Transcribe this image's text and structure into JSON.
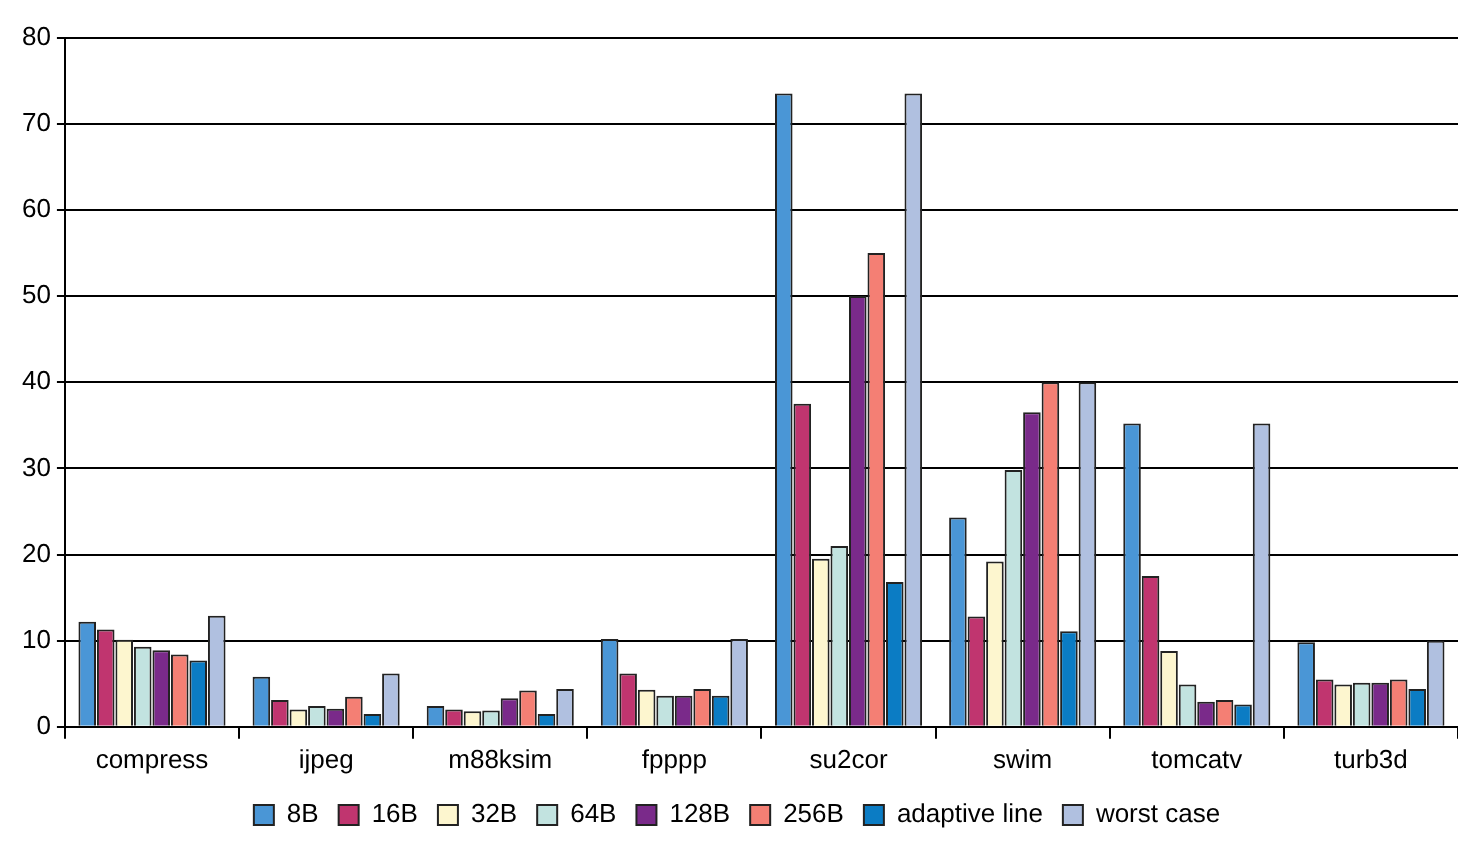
{
  "chart_data": {
    "type": "bar",
    "categories": [
      "compress",
      "ijpeg",
      "m88ksim",
      "fpppp",
      "su2cor",
      "swim",
      "tomcatv",
      "turb3d"
    ],
    "series": [
      {
        "name": "8B",
        "color": "#4a96d6",
        "values": [
          12.2,
          5.8,
          2.4,
          10.2,
          73.5,
          24.3,
          35.2,
          9.8
        ]
      },
      {
        "name": "16B",
        "color": "#c0356f",
        "values": [
          11.3,
          3.1,
          2.0,
          6.2,
          37.5,
          12.8,
          17.5,
          5.5
        ]
      },
      {
        "name": "32B",
        "color": "#fdf6cf",
        "values": [
          10.1,
          2.0,
          1.8,
          4.3,
          19.5,
          19.2,
          8.8,
          4.9
        ]
      },
      {
        "name": "64B",
        "color": "#c2e3e0",
        "values": [
          9.3,
          2.4,
          1.9,
          3.6,
          21,
          29.8,
          4.9,
          5.1
        ]
      },
      {
        "name": "128B",
        "color": "#7a2a8a",
        "values": [
          8.9,
          2.1,
          3.3,
          3.6,
          50,
          36.5,
          2.9,
          5.1
        ]
      },
      {
        "name": "256B",
        "color": "#f47f74",
        "values": [
          8.4,
          3.5,
          4.2,
          4.4,
          55,
          40,
          3.1,
          5.5
        ]
      },
      {
        "name": "adaptive line",
        "color": "#0b7cc4",
        "values": [
          7.7,
          1.5,
          1.5,
          3.6,
          16.8,
          11.1,
          2.6,
          4.4
        ]
      },
      {
        "name": "worst case",
        "color": "#b0c0e0",
        "values": [
          12.9,
          6.2,
          4.4,
          10.2,
          73.5,
          40,
          35.2,
          10
        ]
      }
    ],
    "ylim": [
      0,
      80
    ],
    "yticks": [
      0,
      10,
      20,
      30,
      40,
      50,
      60,
      70,
      80
    ],
    "grid": "y",
    "legend": "bottom"
  }
}
